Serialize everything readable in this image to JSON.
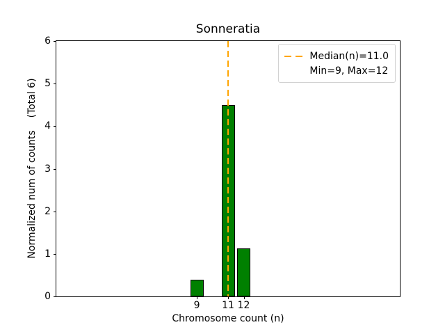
{
  "chart_data": {
    "type": "bar",
    "title": "Sonneratia",
    "xlabel": "Chromosome count (n)",
    "ylabel": "Normalized num of counts    (Total 6)",
    "categories": [
      9,
      11,
      12
    ],
    "values": [
      0.39,
      4.49,
      1.13
    ],
    "bar_width": 0.85,
    "xlim": [
      0,
      22
    ],
    "ylim": [
      0,
      6
    ],
    "xticks": [
      9,
      11,
      12
    ],
    "yticks": [
      0,
      1,
      2,
      3,
      4,
      5,
      6
    ],
    "grid": false,
    "median_line": {
      "x": 11.0,
      "style": "dashed"
    },
    "legend": {
      "position": "upper right",
      "items": [
        {
          "label": "Median(n)=11.0",
          "swatch": "dashed-orange"
        },
        {
          "label": "Min=9, Max=12",
          "swatch": "none"
        }
      ]
    },
    "colors": {
      "bar_fill": "#008000",
      "bar_edge": "#000000",
      "median": "#FFA500",
      "axes": "#000000",
      "legend_border": "#d2d2d2",
      "background": "#ffffff"
    }
  }
}
